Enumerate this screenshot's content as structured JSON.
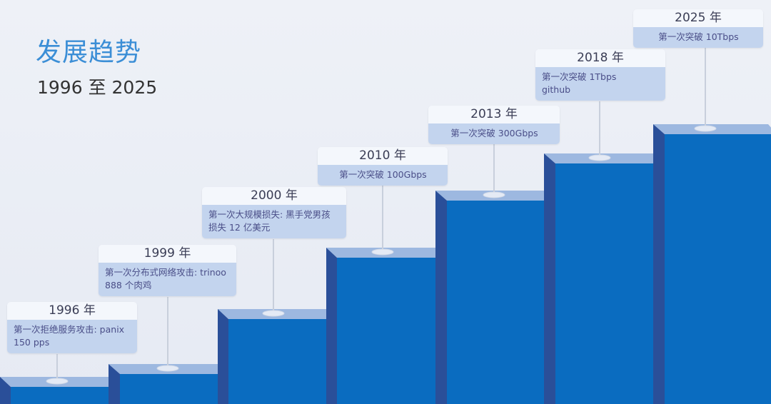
{
  "header": {
    "title": "发展趋势",
    "subtitle": "1996 至 2025"
  },
  "colors": {
    "title": "#3b8ed6",
    "step_front": "#0a6cc0",
    "step_side": "#2a4f99",
    "step_top": "#9db8e0",
    "card_body": "#c3d4ee",
    "card_header": "#f4f7fc"
  },
  "milestones": [
    {
      "year": "1996 年",
      "text": "第一次拒绝服务攻击: panix\n150 pps"
    },
    {
      "year": "1999 年",
      "text": "第一次分布式网络攻击: trinoo\n888 个肉鸡"
    },
    {
      "year": "2000 年",
      "text": "第一次大规模损失: 黑手党男孩\n损失 12 亿美元"
    },
    {
      "year": "2010 年",
      "text": "第一次突破 100Gbps"
    },
    {
      "year": "2013 年",
      "text": "第一次突破 300Gbps"
    },
    {
      "year": "2018 年",
      "text": "第一次突破 1Tbps\ngithub"
    },
    {
      "year": "2025 年",
      "text": "第一次突破 10Tbps"
    }
  ]
}
